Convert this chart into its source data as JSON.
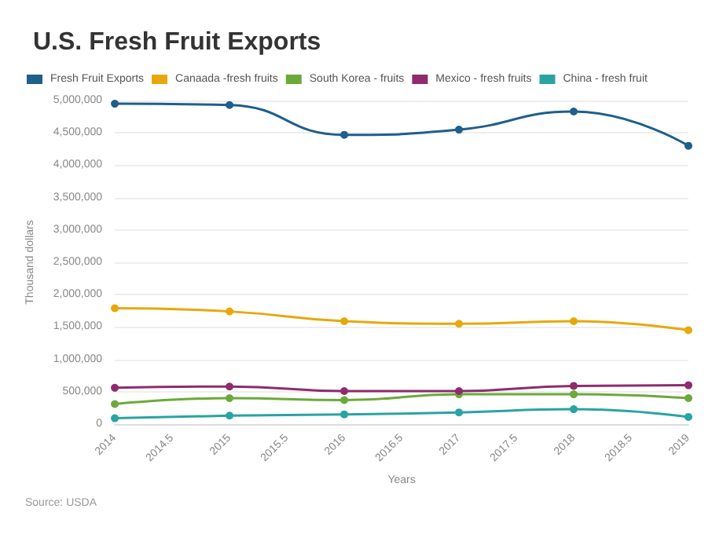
{
  "chart_data": {
    "type": "line",
    "title": "U.S. Fresh Fruit Exports",
    "xlabel": "Years",
    "ylabel": "Thousand dollars",
    "x": [
      2014,
      2015,
      2016,
      2017,
      2018,
      2019
    ],
    "series": [
      {
        "name": "Fresh Fruit Exports",
        "color": "#1f5f8b",
        "values": [
          4950000,
          4930000,
          4470000,
          4550000,
          4830000,
          4300000
        ]
      },
      {
        "name": "Canaada -fresh fruits",
        "color": "#e8a80c",
        "values": [
          1790000,
          1740000,
          1590000,
          1550000,
          1590000,
          1450000
        ]
      },
      {
        "name": "South Korea - fruits",
        "color": "#6aaa3a",
        "values": [
          310000,
          400000,
          370000,
          460000,
          460000,
          400000
        ]
      },
      {
        "name": "Mexico - fresh fruits",
        "color": "#8e2c6e",
        "values": [
          560000,
          580000,
          510000,
          510000,
          590000,
          600000
        ]
      },
      {
        "name": "China - fresh fruit",
        "color": "#2aa3a3",
        "values": [
          90000,
          130000,
          150000,
          180000,
          230000,
          110000
        ]
      }
    ],
    "xlim": [
      2014,
      2019
    ],
    "xticks": [
      2014,
      2014.5,
      2015,
      2015.5,
      2016,
      2016.5,
      2017,
      2017.5,
      2018,
      2018.5,
      2019
    ],
    "ylim": [
      0,
      5000000
    ],
    "yticks": [
      0,
      {
        "value": 500000,
        "label": "500,000"
      },
      {
        "value": 1000000,
        "label": "1,000,000"
      },
      {
        "value": 1500000,
        "label": "1,500,000"
      },
      {
        "value": 2000000,
        "label": "2,000,000"
      },
      {
        "value": 2500000,
        "label": "2,500,000"
      },
      {
        "value": 3000000,
        "label": "3,000,000"
      },
      {
        "value": 3500000,
        "label": "3,500,000"
      },
      {
        "value": 4000000,
        "label": "4,000,000"
      },
      {
        "value": 4500000,
        "label": "4,500,000"
      },
      {
        "value": 5000000,
        "label": "5,000,000"
      }
    ],
    "grid": "y",
    "legend": "top left",
    "marker": "circle",
    "line_style": "solid",
    "annotations": [
      "Source: USDA"
    ]
  }
}
